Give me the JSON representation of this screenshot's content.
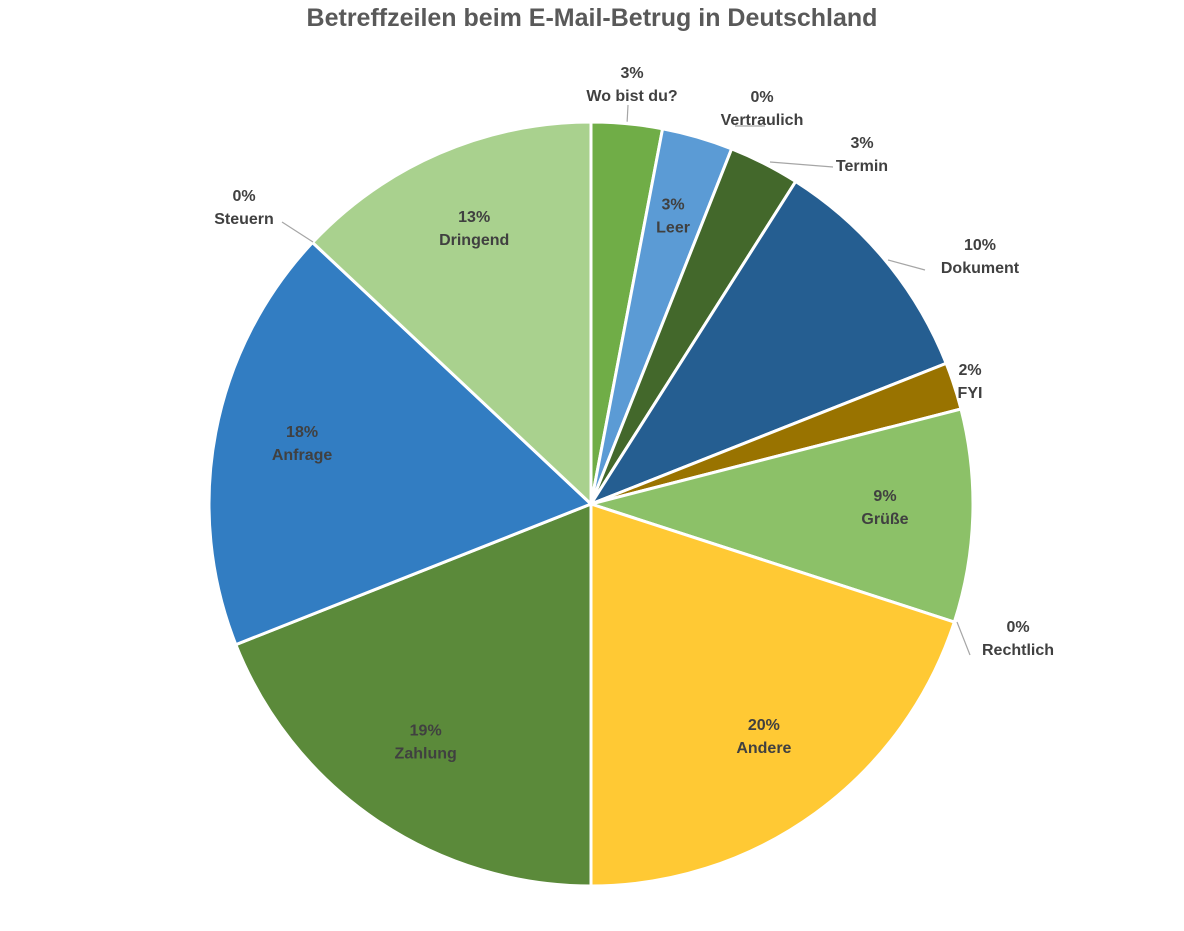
{
  "chart_data": {
    "type": "pie",
    "title": "Betreffzeilen beim E-Mail-Betrug in Deutschland",
    "start": "top",
    "direction": "clockwise",
    "slices": [
      {
        "label": "Wo bist du?",
        "percent_label": "3%",
        "value": 3.0,
        "color": "#70ad47"
      },
      {
        "label": "Leer",
        "percent_label": "3%",
        "value": 3.0,
        "color": "#5b9bd5"
      },
      {
        "label": "Vertraulich",
        "percent_label": "0%",
        "value": 0.0,
        "color": "#548235"
      },
      {
        "label": "Termin",
        "percent_label": "3%",
        "value": 3.0,
        "color": "#43682b"
      },
      {
        "label": "Dokument",
        "percent_label": "10%",
        "value": 10.0,
        "color": "#255e91"
      },
      {
        "label": "FYI",
        "percent_label": "2%",
        "value": 2.0,
        "color": "#997300"
      },
      {
        "label": "Grüße",
        "percent_label": "9%",
        "value": 9.0,
        "color": "#8cc168"
      },
      {
        "label": "Rechtlich",
        "percent_label": "0%",
        "value": 0.0,
        "color": "#bf9000"
      },
      {
        "label": "Andere",
        "percent_label": "20%",
        "value": 20.0,
        "color": "#ffc934"
      },
      {
        "label": "Zahlung",
        "percent_label": "19%",
        "value": 19.0,
        "color": "#5b8a3a"
      },
      {
        "label": "Anfrage",
        "percent_label": "18%",
        "value": 18.0,
        "color": "#327dc2"
      },
      {
        "label": "Steuern",
        "percent_label": "0%",
        "value": 0.0,
        "color": "#2f6aa3"
      },
      {
        "label": "Dringend",
        "percent_label": "13%",
        "value": 13.0,
        "color": "#a9d18e"
      }
    ]
  }
}
